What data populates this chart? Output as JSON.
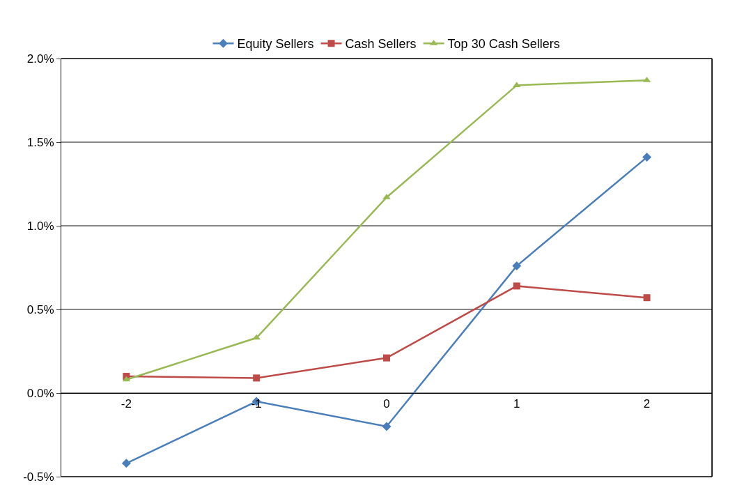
{
  "chart_data": {
    "type": "line",
    "categories": [
      "-2",
      "-1",
      "0",
      "1",
      "2"
    ],
    "series": [
      {
        "name": "Equity Sellers",
        "color": "#4a7ebb",
        "marker": "diamond",
        "values": [
          -0.42,
          -0.05,
          -0.2,
          0.76,
          1.41
        ]
      },
      {
        "name": "Cash Sellers",
        "color": "#be4b48",
        "marker": "square",
        "values": [
          0.1,
          0.09,
          0.21,
          0.64,
          0.57
        ]
      },
      {
        "name": "Top 30 Cash Sellers",
        "color": "#98b954",
        "marker": "triangle",
        "values": [
          0.08,
          0.33,
          1.17,
          1.84,
          1.87
        ]
      }
    ],
    "ylim": [
      -0.5,
      2.0
    ],
    "yticks": [
      {
        "value": -0.5,
        "label": "-0.5%"
      },
      {
        "value": 0.0,
        "label": "0.0%"
      },
      {
        "value": 0.5,
        "label": "0.5%"
      },
      {
        "value": 1.0,
        "label": "1.0%"
      },
      {
        "value": 1.5,
        "label": "1.5%"
      },
      {
        "value": 2.0,
        "label": "2.0%"
      }
    ],
    "grid": "y",
    "legend": "top",
    "line_style": "solid"
  }
}
